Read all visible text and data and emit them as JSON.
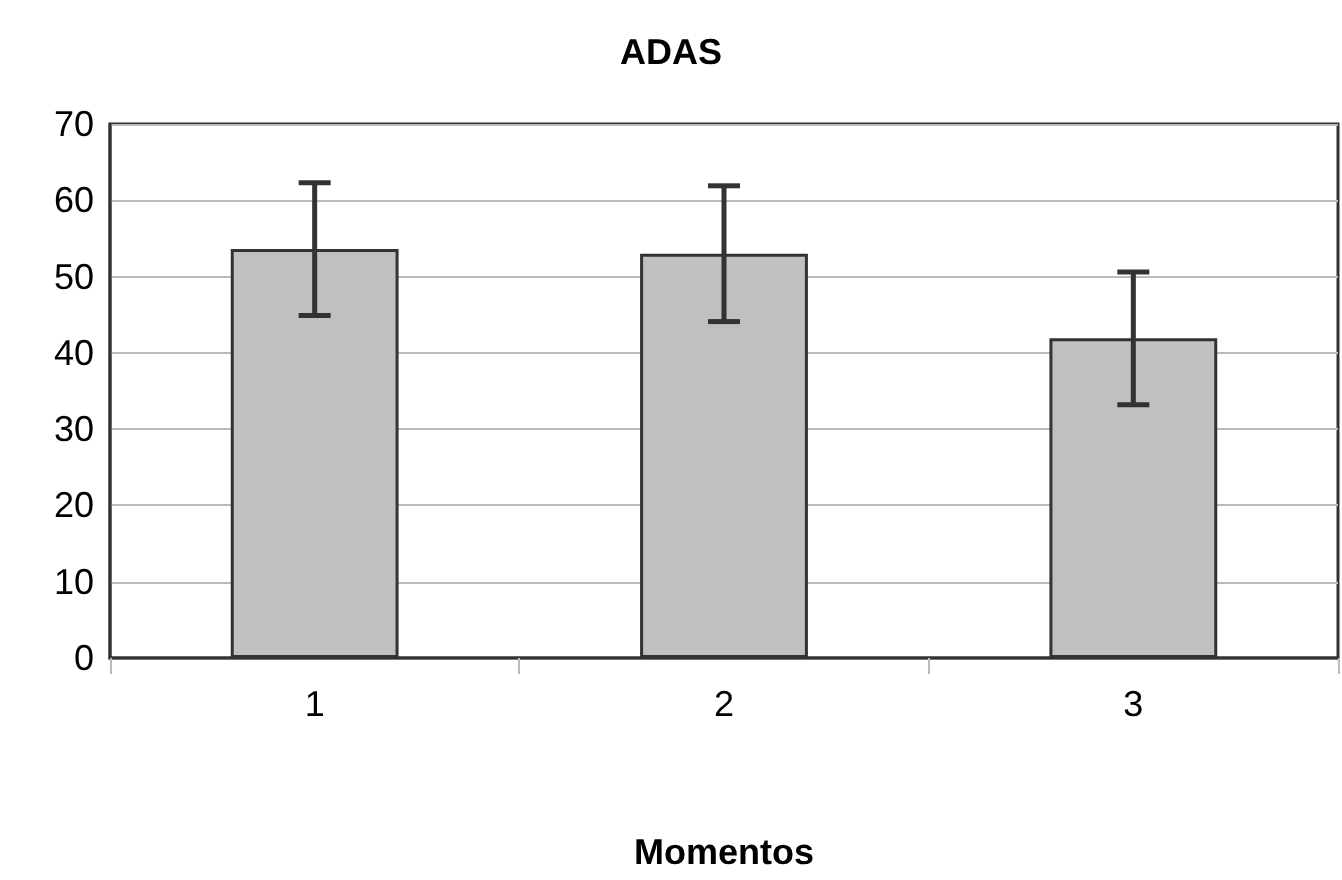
{
  "chart_data": {
    "type": "bar",
    "title": "ADAS",
    "xlabel": "Momentos",
    "categories": [
      "1",
      "2",
      "3"
    ],
    "values": [
      53.6,
      53.0,
      41.9
    ],
    "errors": [
      8.7,
      8.9,
      8.7
    ],
    "color": "#c0c0c0",
    "ylim": [
      0,
      70
    ],
    "yticks": [
      0,
      10,
      20,
      30,
      40,
      50,
      60,
      70
    ],
    "grid": "y"
  }
}
